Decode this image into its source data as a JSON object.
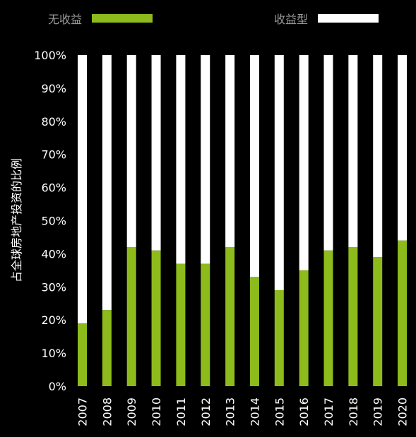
{
  "chart_data": {
    "type": "bar",
    "stacked": true,
    "normalized": true,
    "categories": [
      "2007",
      "2008",
      "2009",
      "2010",
      "2011",
      "2012",
      "2013",
      "2014",
      "2015",
      "2016",
      "2017",
      "2018",
      "2019",
      "2020"
    ],
    "series": [
      {
        "name": "无收益",
        "color": "#8dbb1c",
        "values": [
          19,
          23,
          42,
          41,
          37,
          37,
          42,
          33,
          29,
          35,
          41,
          42,
          39,
          44
        ]
      },
      {
        "name": "收益型",
        "color": "#ffffff",
        "values": [
          81,
          77,
          58,
          59,
          63,
          63,
          58,
          67,
          71,
          65,
          59,
          58,
          61,
          56
        ]
      }
    ],
    "ylabel": "占全球房地产投资的比例",
    "ylim": [
      0,
      100
    ],
    "yticks": [
      "0%",
      "10%",
      "20%",
      "30%",
      "40%",
      "50%",
      "60%",
      "70%",
      "80%",
      "90%",
      "100%"
    ],
    "legend_position": "top",
    "grid": false
  }
}
